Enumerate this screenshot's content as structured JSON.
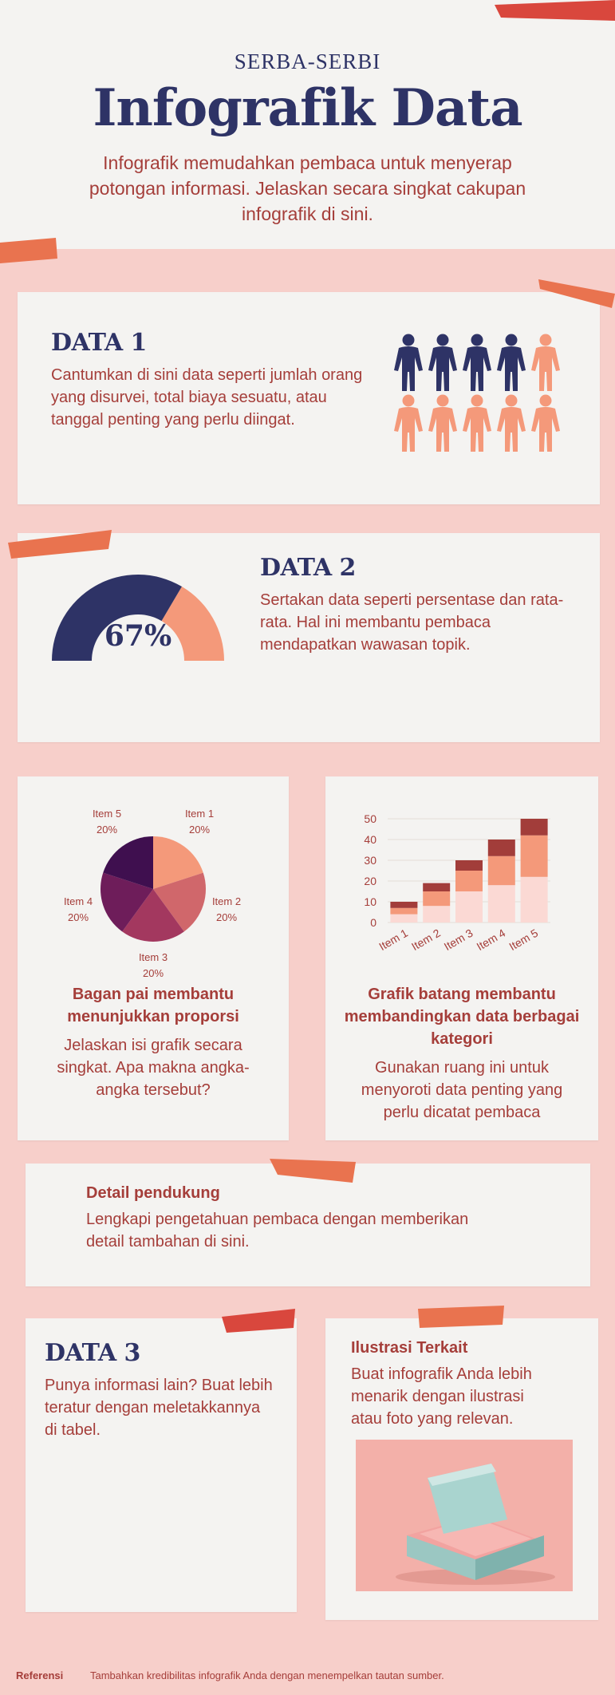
{
  "header": {
    "kicker": "SERBA-SERBI",
    "title": "Infografik Data",
    "subtitle": "Infografik memudahkan pembaca untuk menyerap potongan informasi. Jelaskan secara singkat cakupan infografik di sini."
  },
  "data1": {
    "title": "DATA 1",
    "text": "Cantumkan di sini data seperti jumlah orang yang disurvei, total biaya sesuatu, atau tanggal penting yang perlu diingat.",
    "people_total": 10,
    "people_highlighted": 6
  },
  "data2": {
    "title": "DATA 2",
    "text": "Sertakan data seperti persentase dan rata-rata. Hal ini membantu pembaca mendapatkan wawasan topik.",
    "gauge_value": "67%",
    "gauge_fraction": 0.67
  },
  "pie_card": {
    "heading": "Bagan pai membantu menunjukkan proporsi",
    "text": "Jelaskan isi grafik secara singkat. Apa makna angka-angka tersebut?"
  },
  "bar_card": {
    "heading": "Grafik batang membantu membandingkan data berbagai kategori",
    "text": "Gunakan ruang ini untuk menyoroti data penting yang perlu dicatat pembaca"
  },
  "support": {
    "title": "Detail pendukung",
    "text": "Lengkapi pengetahuan pembaca dengan memberikan detail tambahan di sini."
  },
  "data3": {
    "title": "DATA 3",
    "text": "Punya informasi lain? Buat lebih teratur dengan meletakkannya di tabel."
  },
  "illustration": {
    "title": "Ilustrasi Terkait",
    "text": "Buat infografik Anda lebih menarik dengan ilustrasi atau foto yang relevan."
  },
  "footer": {
    "label": "Referensi",
    "text": "Tambahkan kredibilitas infografik Anda dengan menempelkan tautan sumber."
  },
  "colors": {
    "navy": "#2e3366",
    "salmon": "#f4997a",
    "text_red": "#a53e3a",
    "background_pink": "#f7cfca",
    "paper": "#f4f3f1"
  },
  "chart_data": [
    {
      "type": "pie",
      "categories": [
        "Item 1",
        "Item 2",
        "Item 3",
        "Item 4",
        "Item 5"
      ],
      "values": [
        20,
        20,
        20,
        20,
        20
      ],
      "labels": [
        "20%",
        "20%",
        "20%",
        "20%",
        "20%"
      ],
      "colors": [
        "#f4997a",
        "#d0676b",
        "#a3385f",
        "#6e1d5a",
        "#3f0f4f"
      ]
    },
    {
      "type": "bar",
      "stacked": true,
      "categories": [
        "Item 1",
        "Item 2",
        "Item 3",
        "Item 4",
        "Item 5"
      ],
      "series": [
        {
          "values": [
            4,
            8,
            15,
            18,
            22
          ],
          "color": "#fbd9d4"
        },
        {
          "values": [
            3,
            7,
            10,
            14,
            20
          ],
          "color": "#f4997a"
        },
        {
          "values": [
            3,
            4,
            5,
            8,
            8
          ],
          "color": "#a23d3a"
        }
      ],
      "ylim": [
        0,
        50
      ],
      "yticks": [
        0,
        10,
        20,
        30,
        40,
        50
      ]
    }
  ]
}
